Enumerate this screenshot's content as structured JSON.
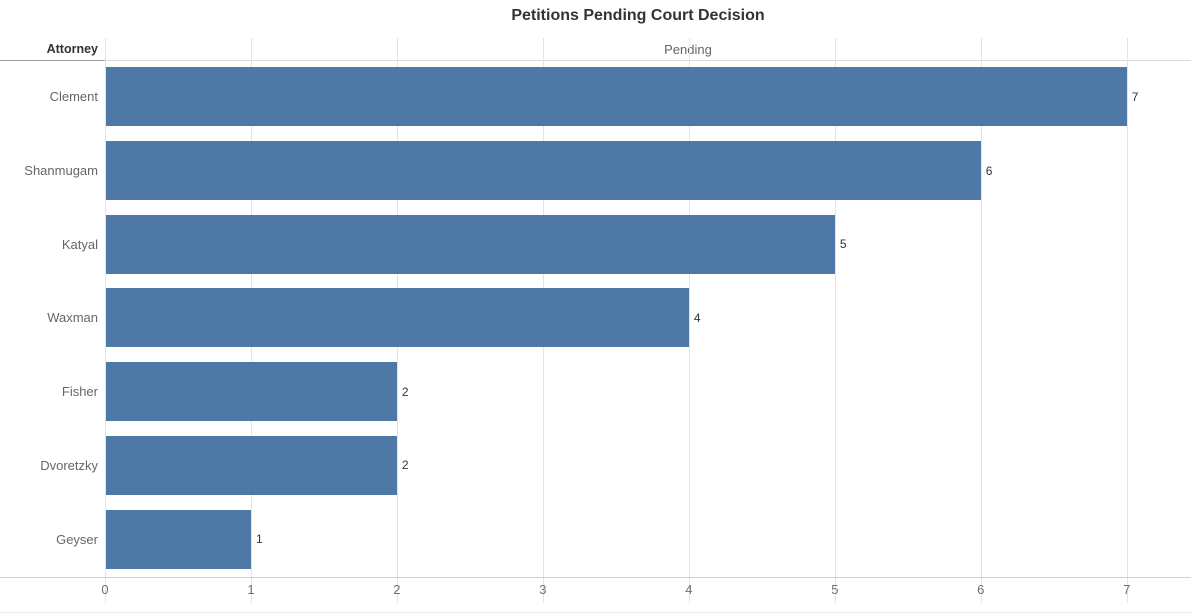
{
  "colors": {
    "bar": "#4e79a7",
    "title_text": "#333333",
    "header_text": "#666666",
    "gridline": "#e3e3e3"
  },
  "chart_data": {
    "type": "bar",
    "orientation": "horizontal",
    "title": "Petitions Pending Court Decision",
    "row_header": "Attorney",
    "column_header": "Pending",
    "categories": [
      "Clement",
      "Shanmugam",
      "Katyal",
      "Waxman",
      "Fisher",
      "Dvoretzky",
      "Geyser"
    ],
    "values": [
      7,
      6,
      5,
      4,
      2,
      2,
      1
    ],
    "bar_labels": [
      "7",
      "6",
      "5",
      "4",
      "2",
      "2",
      "1"
    ],
    "x_ticks": [
      "0",
      "1",
      "2",
      "3",
      "4",
      "5",
      "6",
      "7"
    ],
    "x_tick_values": [
      0,
      1,
      2,
      3,
      4,
      5,
      6,
      7
    ],
    "xlim": [
      0,
      7.44
    ],
    "grid": "vertical-on",
    "legend": "none",
    "sort": "descending"
  }
}
